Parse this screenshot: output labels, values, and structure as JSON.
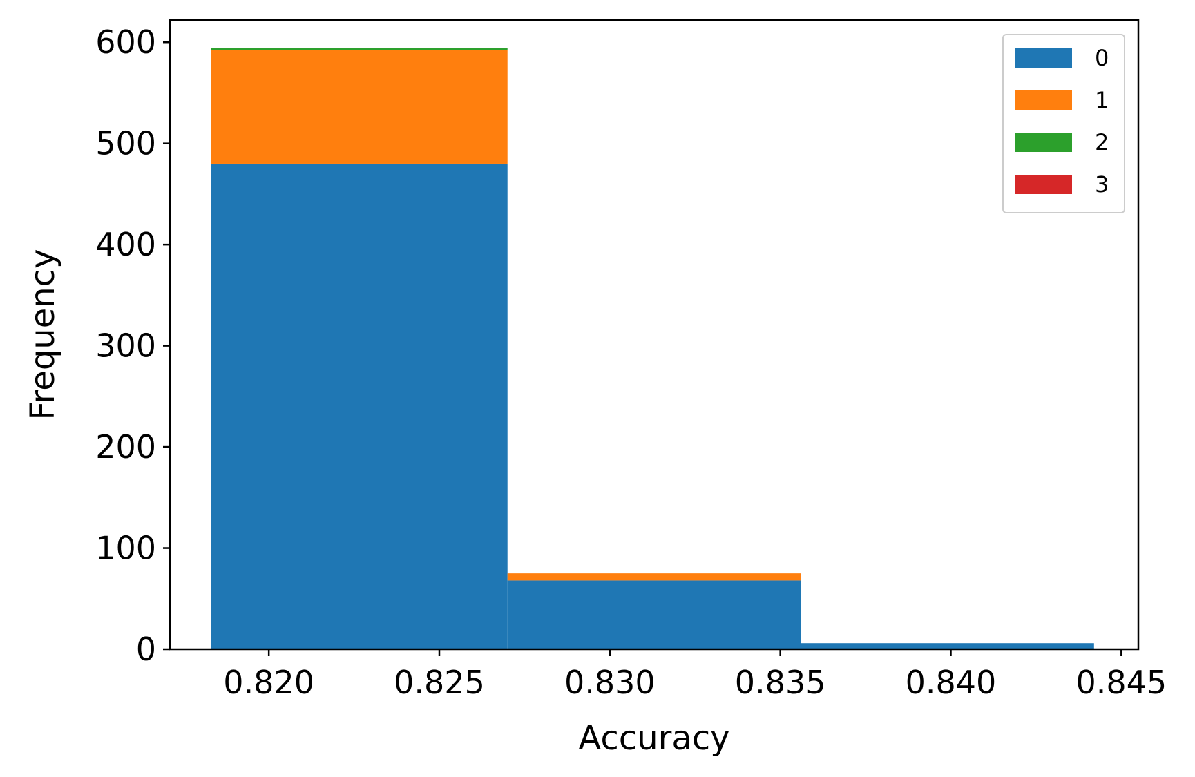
{
  "chart_data": {
    "type": "bar",
    "subtype": "stacked histogram",
    "title": "",
    "xlabel": "Accuracy",
    "ylabel": "Frequency",
    "xlim": [
      0.8171,
      0.8455
    ],
    "ylim": [
      0,
      622
    ],
    "x_ticks": [
      0.82,
      0.825,
      0.83,
      0.835,
      0.84,
      0.845
    ],
    "x_tick_labels": [
      "0.820",
      "0.825",
      "0.830",
      "0.835",
      "0.840",
      "0.845"
    ],
    "y_ticks": [
      0,
      100,
      200,
      300,
      400,
      500,
      600
    ],
    "y_tick_labels": [
      "0",
      "100",
      "200",
      "300",
      "400",
      "500",
      "600"
    ],
    "bins": [
      {
        "start": 0.8183,
        "end": 0.827
      },
      {
        "start": 0.827,
        "end": 0.8356
      },
      {
        "start": 0.8356,
        "end": 0.8442
      }
    ],
    "series": [
      {
        "name": "0",
        "color": "#1f77b4",
        "values": [
          480,
          68,
          6
        ]
      },
      {
        "name": "1",
        "color": "#ff7f0e",
        "values": [
          112,
          7,
          0
        ]
      },
      {
        "name": "2",
        "color": "#2ca02c",
        "values": [
          2,
          0,
          0
        ]
      },
      {
        "name": "3",
        "color": "#d62728",
        "values": [
          0,
          0,
          0
        ]
      }
    ],
    "grid": false,
    "legend_position": "top-right"
  }
}
